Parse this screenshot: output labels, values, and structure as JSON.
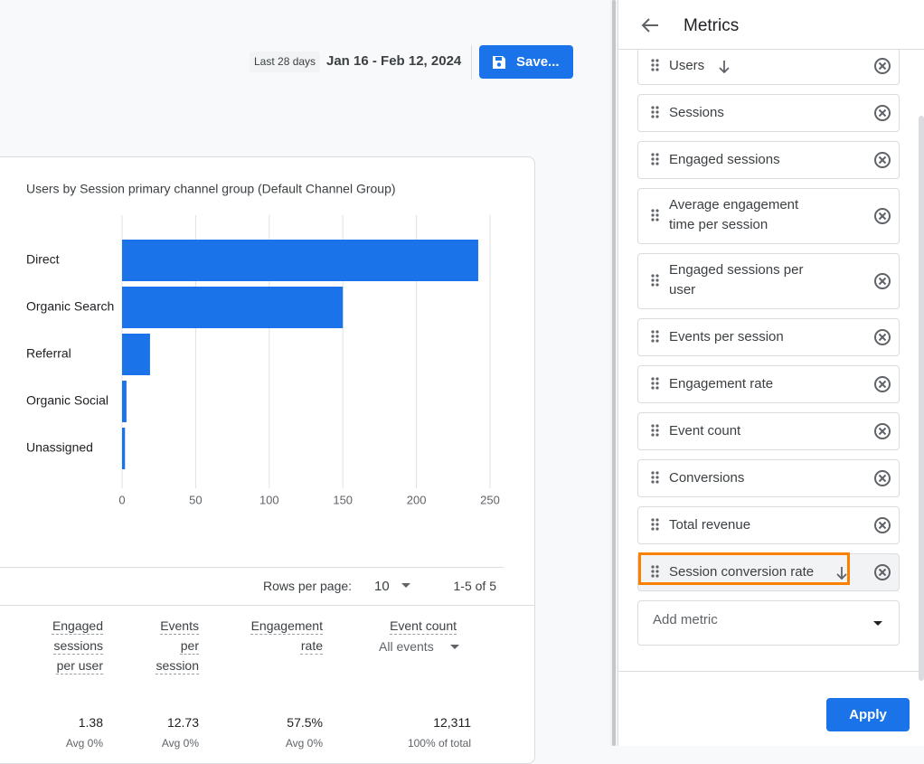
{
  "header": {
    "date_chip": "Last 28 days",
    "date_range": "Jan 16 - Feb 12, 2024",
    "save_button": "Save..."
  },
  "chart_data": {
    "type": "bar",
    "orientation": "horizontal",
    "title": "Users by Session primary channel group (Default Channel Group)",
    "categories": [
      "Direct",
      "Organic Search",
      "Referral",
      "Organic Social",
      "Unassigned"
    ],
    "values": [
      242,
      150,
      19,
      3,
      2
    ],
    "color": "#1a73e8",
    "xlim": [
      0,
      250
    ],
    "xticks": [
      0,
      50,
      100,
      150,
      200,
      250
    ],
    "grid": true
  },
  "table": {
    "rows_per_page_label": "Rows per page:",
    "rows_per_page": 10,
    "pagination": "1-5 of 5",
    "columns": [
      [
        "Engaged",
        "sessions",
        "per user"
      ],
      [
        "Events",
        "per",
        "session"
      ],
      [
        "Engagement",
        "rate"
      ],
      [
        "Event count"
      ]
    ],
    "filter": "All events",
    "rows": [
      [
        "1.38",
        "12.73",
        "57.5%",
        "12,311"
      ]
    ],
    "footer": [
      "Avg 0%",
      "Avg 0%",
      "Avg 0%",
      "100% of total"
    ]
  },
  "panel": {
    "title": "Metrics",
    "metrics": [
      [
        "Users"
      ],
      [
        "Sessions"
      ],
      [
        "Engaged sessions"
      ],
      [
        "Average engagement",
        "time per session"
      ],
      [
        "Engaged sessions per",
        "user"
      ],
      [
        "Events per session"
      ],
      [
        "Engagement rate"
      ],
      [
        "Event count"
      ],
      [
        "Conversions"
      ],
      [
        "Total revenue"
      ],
      [
        "Session conversion rate"
      ]
    ],
    "add_metric": "Add metric",
    "apply_button": "Apply"
  }
}
